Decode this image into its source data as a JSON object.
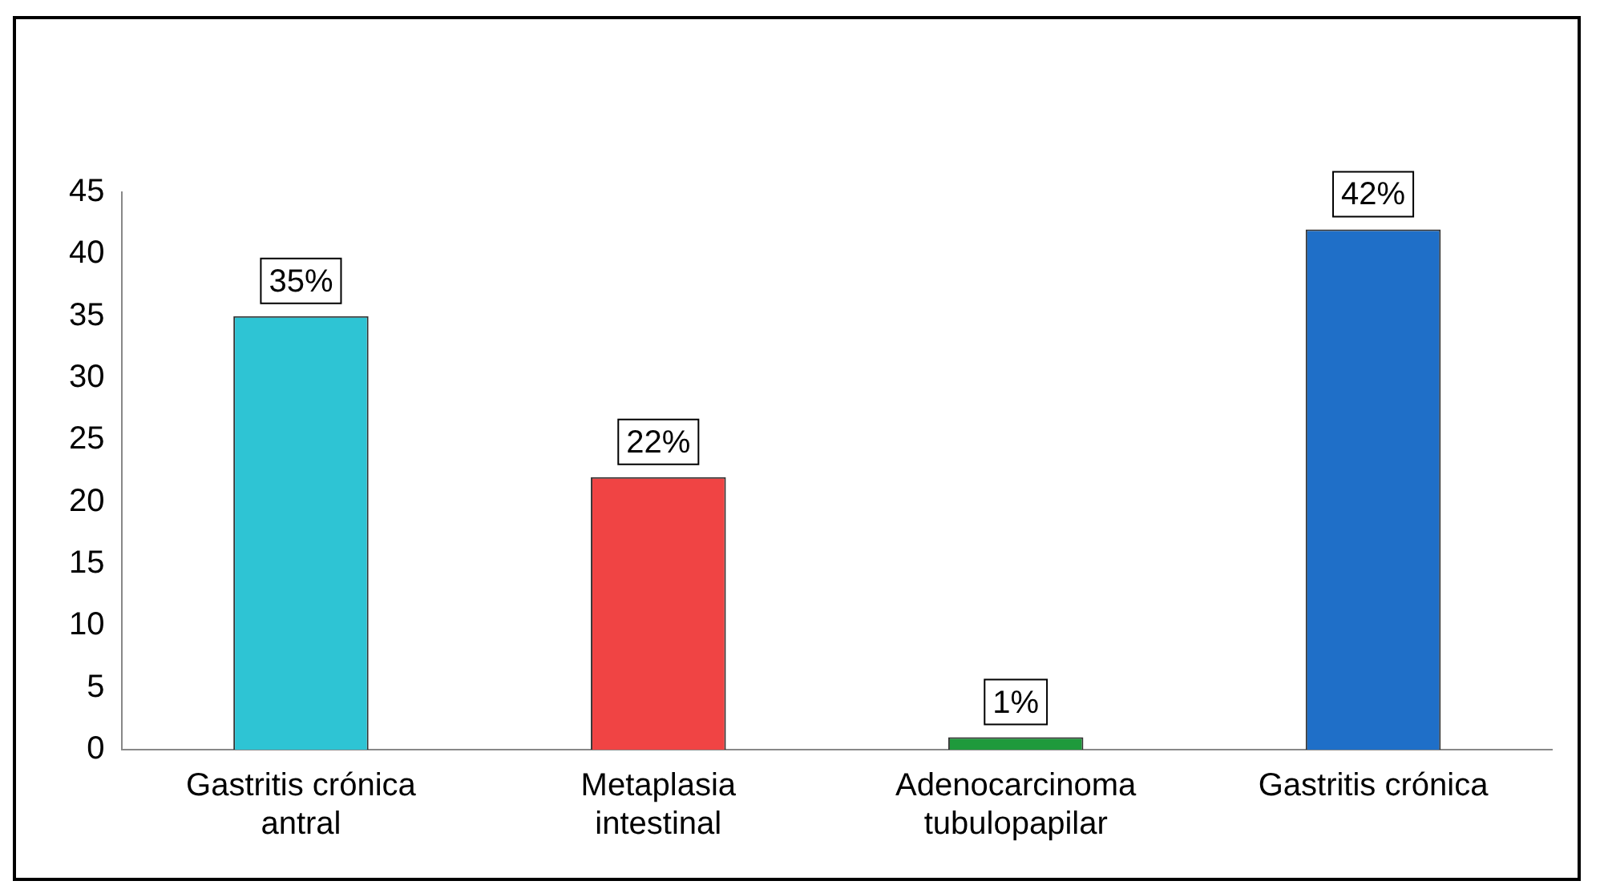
{
  "chart_data": {
    "type": "bar",
    "categories": [
      "Gastritis crónica antral",
      "Metaplasia intestinal",
      "Adenocarcinoma tubulopapilar",
      "Gastritis crónica"
    ],
    "values": [
      35,
      22,
      1,
      42
    ],
    "colors": [
      "#2ec4d4",
      "#f04444",
      "#1f9a3c",
      "#1f6fc8"
    ],
    "value_labels": [
      "35%",
      "22%",
      "1%",
      "42%"
    ],
    "ylim": [
      0,
      45
    ],
    "yticks": [
      0,
      5,
      10,
      15,
      20,
      25,
      30,
      35,
      40,
      45
    ],
    "grid": false,
    "legend": false
  }
}
